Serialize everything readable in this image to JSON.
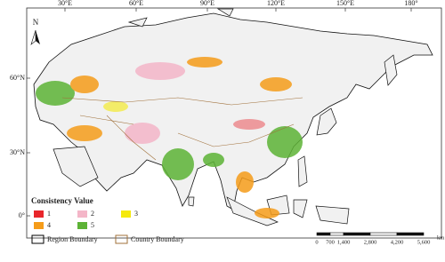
{
  "map": {
    "north": "N",
    "lon_labels": [
      "30°E",
      "60°E",
      "90°E",
      "120°E",
      "150°E",
      "180°"
    ],
    "lat_labels": [
      "60°N",
      "30°N",
      "0°"
    ]
  },
  "legend": {
    "title": "Consistency Value",
    "items": [
      {
        "label": "1",
        "color": "#e8262b"
      },
      {
        "label": "2",
        "color": "#f4b6c8"
      },
      {
        "label": "3",
        "color": "#f5e90d"
      },
      {
        "label": "4",
        "color": "#f59c1a"
      },
      {
        "label": "5",
        "color": "#5db336"
      }
    ],
    "boundaries": [
      {
        "label": "Region Boundary",
        "color": "#000000"
      },
      {
        "label": "Country Boundary",
        "color": "#a0703a"
      }
    ]
  },
  "scale_bar": {
    "labels": [
      "0",
      "700",
      "1,400",
      "2,800",
      "4,200",
      "5,600"
    ],
    "unit": "km"
  }
}
